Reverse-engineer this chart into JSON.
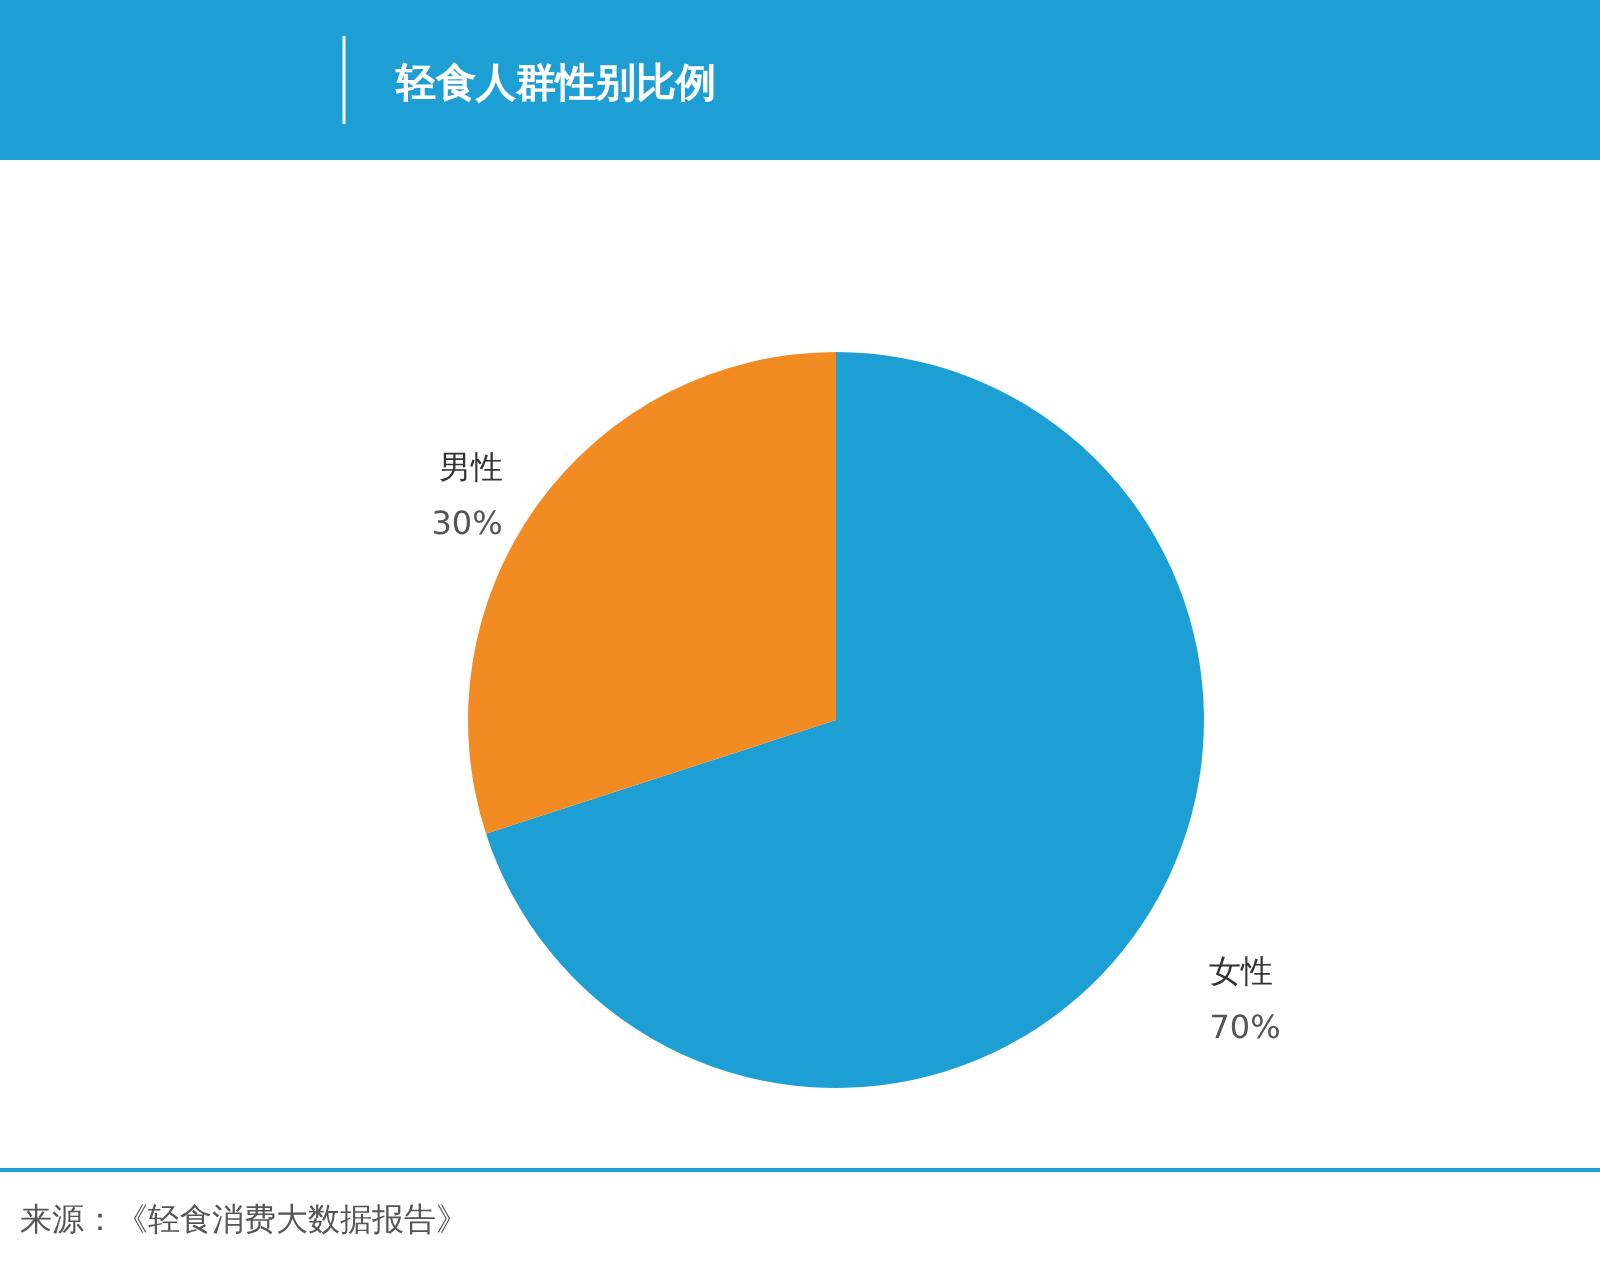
{
  "chart_data": {
    "type": "pie",
    "title": "轻食人群性别比例",
    "categories": [
      "女性",
      "男性"
    ],
    "values": [
      70,
      30
    ],
    "colors": [
      "#1e9fd4",
      "#f28c22"
    ],
    "value_labels": [
      "70%",
      "30%"
    ],
    "annotations": [
      "来源：《轻食消费大数据报告》"
    ]
  }
}
